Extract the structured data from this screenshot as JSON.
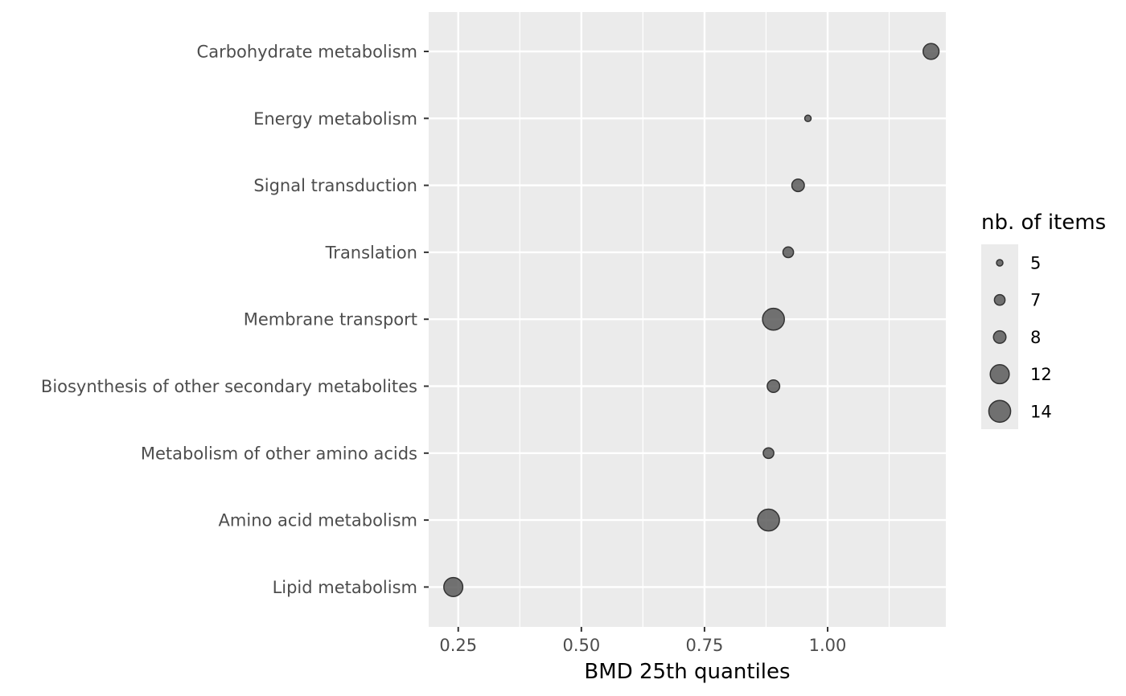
{
  "chart_data": {
    "type": "scatter",
    "title": "",
    "xlabel": "BMD 25th quantiles",
    "ylabel": "",
    "xlim": [
      0.19,
      1.24
    ],
    "x_ticks": [
      0.25,
      0.5,
      0.75,
      1.0
    ],
    "x_tick_labels": [
      "0.25",
      "0.50",
      "0.75",
      "1.00"
    ],
    "categories": [
      "Carbohydrate metabolism",
      "Energy metabolism",
      "Signal transduction",
      "Translation",
      "Membrane transport",
      "Biosynthesis of other secondary metabolites",
      "Metabolism of other amino acids",
      "Amino acid metabolism",
      "Lipid metabolism"
    ],
    "points": [
      {
        "category": "Carbohydrate metabolism",
        "x": 1.21,
        "size": 10
      },
      {
        "category": "Energy metabolism",
        "x": 0.96,
        "size": 5
      },
      {
        "category": "Signal transduction",
        "x": 0.94,
        "size": 8
      },
      {
        "category": "Translation",
        "x": 0.92,
        "size": 7
      },
      {
        "category": "Membrane transport",
        "x": 0.89,
        "size": 14
      },
      {
        "category": "Biosynthesis of other secondary metabolites",
        "x": 0.89,
        "size": 8
      },
      {
        "category": "Metabolism of other amino acids",
        "x": 0.88,
        "size": 7
      },
      {
        "category": "Amino acid metabolism",
        "x": 0.88,
        "size": 14
      },
      {
        "category": "Lipid metabolism",
        "x": 0.24,
        "size": 12
      }
    ],
    "grid": true,
    "legend": {
      "title": "nb. of items",
      "position": "right",
      "entries": [
        {
          "label": "5",
          "size": 5
        },
        {
          "label": "7",
          "size": 7
        },
        {
          "label": "8",
          "size": 8
        },
        {
          "label": "12",
          "size": 12
        },
        {
          "label": "14",
          "size": 14
        }
      ]
    },
    "colors": {
      "panel_background": "#ebebeb",
      "grid_line": "#ffffff",
      "point_fill": "#5a5a5a",
      "point_stroke": "#333333",
      "tick_text": "#4d4d4d",
      "tick_mark": "#333333"
    }
  }
}
